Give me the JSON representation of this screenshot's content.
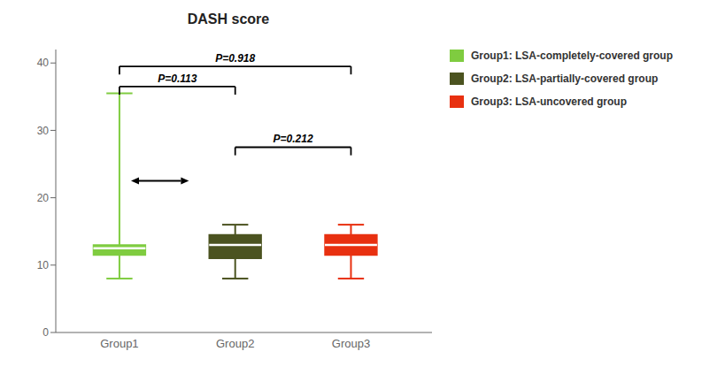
{
  "chart_data": {
    "type": "box",
    "title": "DASH score",
    "xlim": [
      0.45,
      3.7
    ],
    "xticks": [
      {
        "value": 1,
        "label": "Group1"
      },
      {
        "value": 2,
        "label": "Group2"
      },
      {
        "value": 3,
        "label": "Group3"
      }
    ],
    "ylim": [
      0,
      42
    ],
    "yticks": [
      0,
      10,
      20,
      30,
      40
    ],
    "series": [
      {
        "name": "Group1: LSA-completely-covered group",
        "color": "#7FCC40",
        "whislo": 8.0,
        "q1": 11.5,
        "med": 12.5,
        "q3": 13.0,
        "whishi": 35.5
      },
      {
        "name": "Group2: LSA-partially-covered group",
        "color": "#4B5320",
        "whislo": 8.0,
        "q1": 11.0,
        "med": 13.0,
        "q3": 14.5,
        "whishi": 16.0
      },
      {
        "name": "Group3: LSA-uncovered group",
        "color": "#E83010",
        "whislo": 8.0,
        "q1": 11.5,
        "med": 13.0,
        "q3": 14.5,
        "whishi": 16.0
      }
    ],
    "annotations": [
      {
        "x1": 1,
        "x2": 2,
        "y": 36.5,
        "label": "P=0.113"
      },
      {
        "x1": 1,
        "x2": 3,
        "y": 39.5,
        "label": "P=0.918"
      },
      {
        "x1": 2,
        "x2": 3,
        "y": 27.5,
        "label": "P=0.212"
      }
    ],
    "arrows": [
      {
        "x1": 1.1,
        "x2": 1.6,
        "y": 22.5
      }
    ],
    "legend": "right",
    "grid": false
  }
}
